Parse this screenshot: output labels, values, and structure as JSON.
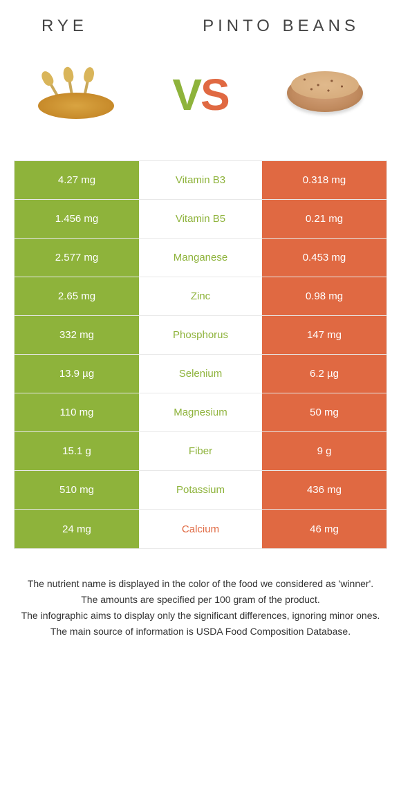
{
  "colors": {
    "left": "#8eb33b",
    "right": "#e06942",
    "row_border": "#e8e8e8",
    "text_dark": "#444444"
  },
  "header": {
    "left_title": "RYE",
    "right_title": "PINTO BEANS",
    "vs_v": "V",
    "vs_s": "S"
  },
  "rows": [
    {
      "left": "4.27 mg",
      "label": "Vitamin B3",
      "right": "0.318 mg",
      "winner": "left"
    },
    {
      "left": "1.456 mg",
      "label": "Vitamin B5",
      "right": "0.21 mg",
      "winner": "left"
    },
    {
      "left": "2.577 mg",
      "label": "Manganese",
      "right": "0.453 mg",
      "winner": "left"
    },
    {
      "left": "2.65 mg",
      "label": "Zinc",
      "right": "0.98 mg",
      "winner": "left"
    },
    {
      "left": "332 mg",
      "label": "Phosphorus",
      "right": "147 mg",
      "winner": "left"
    },
    {
      "left": "13.9 µg",
      "label": "Selenium",
      "right": "6.2 µg",
      "winner": "left"
    },
    {
      "left": "110 mg",
      "label": "Magnesium",
      "right": "50 mg",
      "winner": "left"
    },
    {
      "left": "15.1 g",
      "label": "Fiber",
      "right": "9 g",
      "winner": "left"
    },
    {
      "left": "510 mg",
      "label": "Potassium",
      "right": "436 mg",
      "winner": "left"
    },
    {
      "left": "24 mg",
      "label": "Calcium",
      "right": "46 mg",
      "winner": "right"
    }
  ],
  "footer": {
    "line1": "The nutrient name is displayed in the color of the food we considered as 'winner'.",
    "line2": "The amounts are specified per 100 gram of the product.",
    "line3": "The infographic aims to display only the significant differences, ignoring minor ones.",
    "line4": "The main source of information is USDA Food Composition Database."
  }
}
